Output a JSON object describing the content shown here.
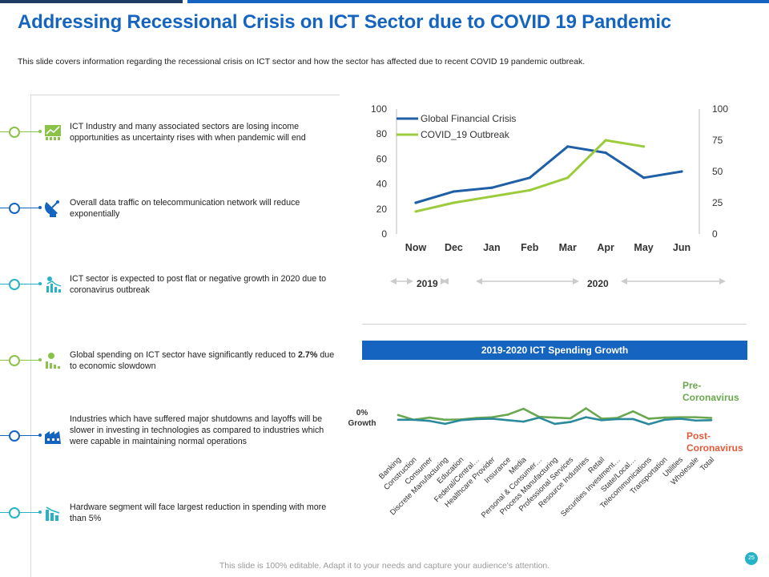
{
  "header": {
    "title": "Addressing Recessional Crisis on ICT Sector due to COVID 19 Pandemic",
    "subtitle": "This slide covers information regarding the recessional crisis on ICT  sector and how the sector has affected due to recent COVID 19 pandemic outbreak."
  },
  "timeline": {
    "items": [
      {
        "icon": "building-chart-icon",
        "color": "#8bc34a",
        "text": "ICT Industry and many associated sectors are losing income opportunities as uncertainty rises with when pandemic will end"
      },
      {
        "icon": "satellite-dish-icon",
        "color": "#1565c0",
        "text": "Overall data traffic on telecommunication network will reduce exponentially"
      },
      {
        "icon": "declining-chart-icon",
        "color": "#27b3c7",
        "text": "ICT sector is expected to post flat or negative growth in 2020 due to coronavirus outbreak"
      },
      {
        "icon": "spending-chart-icon",
        "color": "#8bc34a",
        "text_before": "Global spending on ICT sector have significantly reduced to ",
        "text_bold": "2.7%",
        "text_after": " due to economic slowdown"
      },
      {
        "icon": "factory-icon",
        "color": "#1565c0",
        "text": "Industries which have suffered major shutdowns and layoffs will be slower in investing in technologies as compared to industries which were capable in maintaining normal operations"
      },
      {
        "icon": "hardware-chart-icon",
        "color": "#27b3c7",
        "text": "Hardware segment will face largest reduction in spending with more than 5%"
      }
    ]
  },
  "chart_data": [
    {
      "type": "line",
      "title": "",
      "categories": [
        "Now",
        "Dec",
        "Jan",
        "Feb",
        "Mar",
        "Apr",
        "May",
        "Jun"
      ],
      "series": [
        {
          "name": "Global Financial Crisis",
          "axis": "left",
          "color": "#1f5fa6",
          "values": [
            25,
            34,
            37,
            45,
            70,
            65,
            45,
            50
          ]
        },
        {
          "name": "COVID_19 Outbreak",
          "axis": "right",
          "color": "#9ccc3c",
          "values": [
            18,
            25,
            30,
            35,
            45,
            75,
            70,
            null
          ]
        }
      ],
      "y_left": {
        "min": 0,
        "max": 100,
        "ticks": [
          "0",
          "20",
          "40",
          "60",
          "80",
          "100"
        ]
      },
      "y_right": {
        "min": 0,
        "max": 100,
        "ticks": [
          "0",
          "25",
          "50",
          "75",
          "100"
        ]
      },
      "legend": "top-left",
      "periods": [
        {
          "label": "2019",
          "from": "Now",
          "to": "Dec"
        },
        {
          "label": "2020",
          "from": "Jan",
          "to": "Jun"
        }
      ]
    },
    {
      "type": "line",
      "title": "2019-2020  ICT Spending Growth",
      "baseline_label": "0% Growth",
      "categories": [
        "Banking",
        "Construction",
        "Consumer",
        "Discrete Manufacturing",
        "Education",
        "Federal/Central…",
        "Healthcare Provider",
        "Insurance",
        "Media",
        "Personal & Consumer…",
        "Process Manufacturing",
        "Professional Services",
        "Resource Industries",
        "Retail",
        "Securities Investment…",
        "State/Local…",
        "Telecommunications",
        "Transportation",
        "Utilities",
        "Wholesale",
        "Total"
      ],
      "y_range": [
        -5,
        5
      ],
      "series": [
        {
          "name": "Pre- Coronavirus",
          "color": "#6aa84f",
          "values": [
            0.9,
            -0.4,
            0.2,
            -0.4,
            -0.3,
            0.1,
            0.3,
            1.0,
            2.6,
            0.4,
            0.2,
            0.0,
            2.7,
            -0.1,
            0.1,
            1.9,
            -0.1,
            0.2,
            0.3,
            0.3,
            0.1
          ]
        },
        {
          "name": "Post- Coronavirus",
          "color": "#2a8a9c",
          "values": [
            -0.4,
            -0.4,
            -0.7,
            -1.5,
            -0.5,
            -0.2,
            -0.1,
            -0.5,
            -0.9,
            0.2,
            -1.5,
            -1.0,
            0.3,
            -0.5,
            -0.2,
            -0.2,
            -1.6,
            -0.4,
            -0.1,
            -0.6,
            -0.5
          ]
        }
      ]
    }
  ],
  "footer": {
    "text": "This slide is 100% editable. Adapt it to your needs and capture your audience's attention.",
    "page_number": "25"
  }
}
